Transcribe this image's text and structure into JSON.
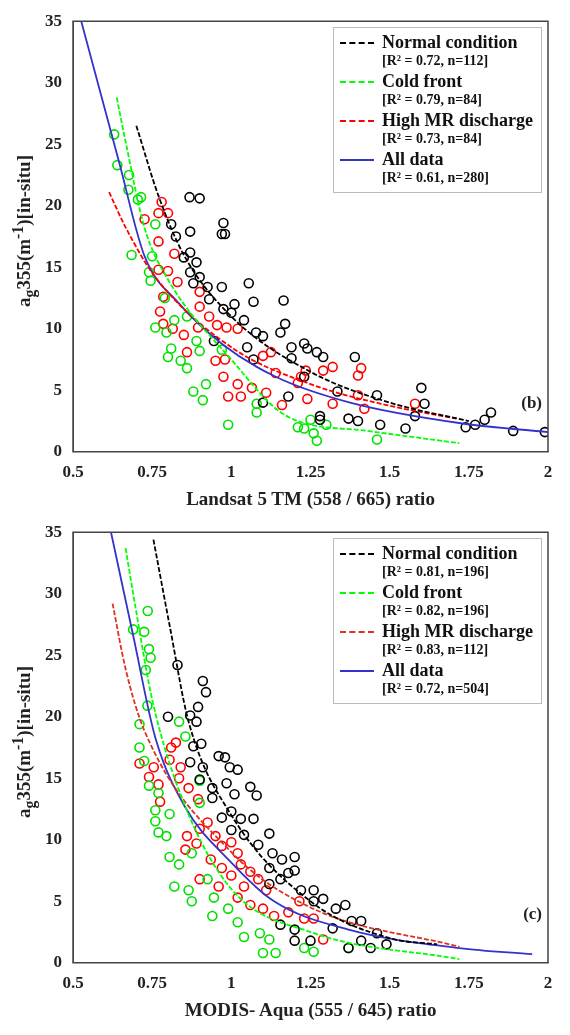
{
  "chart_data": [
    {
      "type": "scatter",
      "xlabel": "Landsat 5 TM (558 / 665) ratio",
      "ylabel": "a$_{g}$355(m$^{-1}$)[in-situ]",
      "xlim": [
        0.5,
        2
      ],
      "xticks": [
        0.5,
        0.75,
        1,
        1.25,
        1.5,
        1.75,
        2
      ],
      "ylim": [
        0,
        35
      ],
      "yticks": [
        0,
        5,
        10,
        15,
        20,
        25,
        30,
        35
      ],
      "grid": false,
      "legend": "top right",
      "annotations": [
        "(b)"
      ],
      "series": [
        {
          "marker": "circle",
          "color": "#000000",
          "x": [
            0.868,
            0.9,
            0.81,
            0.825,
            0.87,
            0.87,
            0.85,
            0.89,
            0.87,
            0.9,
            0.88,
            0.925,
            0.97,
            0.975,
            0.97,
            0.98,
            0.975,
            1.01,
            1.0,
            1.04,
            1.055,
            1.07,
            1.078,
            1.1,
            1.05,
            1.07,
            1.165,
            1.17,
            1.155,
            1.19,
            1.23,
            1.24,
            1.27,
            1.29,
            1.39,
            1.19,
            1.335,
            1.46,
            1.6,
            1.61,
            1.37,
            1.4,
            1.47,
            1.55,
            1.58,
            1.74,
            1.77,
            1.8,
            1.82,
            1.89,
            1.99,
            1.1,
            1.18,
            1.23,
            1.28,
            1.28,
            0.945,
            0.93
          ],
          "values": [
            20.7,
            20.6,
            18.5,
            17.5,
            17.9,
            16.2,
            15.8,
            15.4,
            14.6,
            14.2,
            13.7,
            13.4,
            13.4,
            18.6,
            17.7,
            17.7,
            11.6,
            12,
            11.3,
            10.7,
            13.7,
            12.2,
            9.7,
            9.4,
            8.5,
            7.5,
            12.3,
            10.4,
            9.7,
            8.5,
            8.8,
            8.4,
            8.1,
            7.7,
            7.7,
            7.6,
            4.9,
            4.6,
            5.2,
            3.9,
            2.7,
            2.5,
            2.2,
            1.9,
            2.9,
            2.0,
            2.2,
            2.6,
            3.2,
            1.7,
            1.6,
            4.0,
            4.5,
            6.1,
            2.9,
            2.6,
            9,
            12.4
          ]
        },
        {
          "marker": "circle",
          "color": "#00e000",
          "x": [
            0.63,
            0.64,
            0.677,
            0.675,
            0.705,
            0.715,
            0.685,
            0.76,
            0.75,
            0.74,
            0.745,
            0.76,
            0.795,
            0.81,
            0.8,
            0.84,
            0.86,
            0.79,
            0.82,
            0.86,
            0.89,
            0.9,
            0.88,
            0.91,
            0.92,
            0.97,
            0.99,
            1.08,
            1.08,
            1.21,
            1.23,
            1.25,
            1.27,
            1.3,
            1.46,
            1.26
          ],
          "values": [
            25.8,
            23.3,
            22.5,
            21.3,
            20.5,
            20.7,
            16,
            18.5,
            15.9,
            14.6,
            13.9,
            10.1,
            9.7,
            8.4,
            7.7,
            7.4,
            6.8,
            12.5,
            10.7,
            11,
            9,
            8.2,
            4.9,
            4.2,
            5.5,
            8.3,
            2.2,
            3.9,
            3.2,
            2.0,
            1.9,
            2.6,
            0.9,
            2.2,
            1.0,
            1.5
          ]
        },
        {
          "marker": "circle",
          "color": "#ff0000",
          "x": [
            0.78,
            0.77,
            0.8,
            0.726,
            0.77,
            0.82,
            0.77,
            0.8,
            0.83,
            0.785,
            0.775,
            0.785,
            0.815,
            0.85,
            0.86,
            0.895,
            0.9,
            0.9,
            0.93,
            0.955,
            0.985,
            1.02,
            0.95,
            0.98,
            0.975,
            1.02,
            0.99,
            1.03,
            1.065,
            1.1,
            1.125,
            1.14,
            1.11,
            1.16,
            1.21,
            1.22,
            1.235,
            1.24,
            1.29,
            1.32,
            1.32,
            1.4,
            1.41,
            1.4,
            1.42,
            1.58
          ],
          "values": [
            20.3,
            19.4,
            19.4,
            18.9,
            17.1,
            16.1,
            14.8,
            14.7,
            13.8,
            12.6,
            11.4,
            10.4,
            10,
            9.5,
            8.1,
            10.1,
            11.8,
            13,
            11,
            10.3,
            10.1,
            10,
            7.4,
            7.5,
            6.1,
            5.5,
            4.5,
            4.5,
            5.2,
            7.8,
            8.1,
            6.4,
            4.8,
            3.8,
            5.6,
            6.1,
            6.6,
            4.3,
            6.6,
            6.9,
            3.9,
            4.6,
            6.8,
            6.2,
            3.5,
            3.9
          ]
        },
        {
          "type": "line",
          "name": "Normal condition\n[R² = 0.72, n=112]",
          "color": "#000000",
          "line_style": "dashed",
          "x": [
            0.7,
            0.77,
            0.85,
            1.0,
            1.25,
            1.5,
            1.75
          ],
          "values": [
            26.5,
            20.8,
            16,
            11,
            6.5,
            4,
            2.5
          ]
        },
        {
          "type": "line",
          "name": "Cold front\n[R² = 0.79, n=84]",
          "color": "#00ff00",
          "line_style": "dashed",
          "x": [
            0.638,
            0.667,
            0.726,
            0.8,
            1.0,
            1.175,
            1.43,
            1.72
          ],
          "values": [
            28.8,
            25.1,
            18.2,
            14,
            7.5,
            2.9,
            1.7,
            0.7
          ]
        },
        {
          "type": "line",
          "name": "High MR discharge\n[R² = 0.73, n=84]",
          "color": "#ff0000",
          "line_style": "dashed",
          "x": [
            0.614,
            0.667,
            0.76,
            1.0,
            1.25,
            1.49,
            1.71
          ],
          "values": [
            21.1,
            18.2,
            14.2,
            8.5,
            5.5,
            3.8,
            2.7
          ]
        },
        {
          "type": "line",
          "name": "All data\n[R² = 0.61, n=280]",
          "color": "#3333cc",
          "line_style": "solid",
          "x": [
            0.526,
            0.644,
            0.726,
            0.833,
            0.974,
            1.14,
            1.375,
            1.73,
            2.0
          ],
          "values": [
            35,
            23.7,
            15.9,
            12.1,
            8.7,
            6.1,
            4.0,
            2.3,
            1.6
          ]
        }
      ]
    },
    {
      "type": "scatter",
      "xlabel": "MODIS- Aqua (555 / 645) ratio",
      "ylabel": "a$_{g}$355(m$^{-1}$)[in-situ]",
      "xlim": [
        0.5,
        2
      ],
      "xticks": [
        0.5,
        0.75,
        1,
        1.25,
        1.5,
        1.75,
        2
      ],
      "ylim": [
        0,
        35
      ],
      "yticks": [
        0,
        5,
        10,
        15,
        20,
        25,
        30,
        35
      ],
      "grid": false,
      "legend": "top right",
      "annotations": [
        "(c)"
      ],
      "series": [
        {
          "marker": "circle",
          "color": "#000000",
          "x": [
            0.83,
            0.87,
            0.91,
            0.92,
            0.895,
            0.89,
            0.905,
            0.88,
            0.8,
            0.91,
            0.9,
            0.96,
            0.98,
            0.995,
            1.02,
            0.94,
            0.985,
            1.01,
            1.06,
            1.08,
            0.94,
            0.97,
            1.0,
            1.03,
            1.07,
            1.0,
            1.04,
            1.12,
            1.085,
            1.13,
            1.16,
            1.2,
            1.12,
            1.18,
            1.2,
            1.155,
            1.22,
            1.26,
            1.26,
            1.29,
            1.33,
            1.36,
            1.38,
            1.41,
            1.155,
            1.2,
            1.2,
            1.25,
            1.32,
            1.37,
            1.41,
            1.44,
            1.46,
            1.49,
            0.87,
            1.12
          ],
          "values": [
            24.2,
            20.1,
            22.9,
            22,
            20.8,
            19.6,
            17.8,
            17.6,
            20,
            15.9,
            14.9,
            16.8,
            16.7,
            15.9,
            15.7,
            14.2,
            14.6,
            13.7,
            14.3,
            13.6,
            13.4,
            11.8,
            12.3,
            11.7,
            11.7,
            10.8,
            10.4,
            10.5,
            9.6,
            8.9,
            8.4,
            8.6,
            7.7,
            7.3,
            7.5,
            6.8,
            5.9,
            5.9,
            5,
            5.2,
            4.4,
            4.7,
            3.4,
            3.4,
            3.1,
            2.7,
            1.8,
            1.8,
            2.8,
            1.2,
            1.8,
            1.2,
            2.4,
            1.5,
            16.3,
            6.4
          ]
        },
        {
          "marker": "circle",
          "color": "#00e000",
          "x": [
            0.736,
            0.69,
            0.725,
            0.74,
            0.745,
            0.73,
            0.735,
            0.71,
            0.71,
            0.725,
            0.74,
            0.77,
            0.76,
            0.77,
            0.795,
            0.805,
            0.835,
            0.82,
            0.865,
            0.875,
            0.835,
            0.855,
            0.9,
            0.9,
            0.925,
            0.945,
            0.94,
            0.99,
            1.02,
            1.04,
            1.09,
            1.1,
            1.14,
            1.12,
            1.23,
            1.26,
            1.37,
            0.875,
            0.805,
            0.76
          ],
          "values": [
            28.6,
            27.1,
            26.9,
            25.5,
            24.8,
            23.8,
            20.9,
            19.4,
            17.5,
            16.4,
            14.4,
            13.8,
            12.4,
            10.6,
            10.3,
            8.6,
            8.0,
            6.2,
            5.9,
            5.0,
            19.6,
            18.4,
            14.8,
            13.0,
            6.8,
            5.3,
            3.8,
            4.4,
            3.3,
            2.1,
            2.4,
            0.8,
            0.8,
            1.9,
            1.2,
            0.9,
            1.2,
            8.9,
            12.1,
            11.5
          ]
        },
        {
          "marker": "circle",
          "color": "#ff0000",
          "x": [
            0.71,
            0.74,
            0.755,
            0.77,
            0.775,
            0.81,
            0.805,
            0.825,
            0.84,
            0.835,
            0.865,
            0.895,
            0.89,
            0.855,
            0.86,
            0.9,
            0.925,
            0.95,
            0.97,
            1.0,
            1.02,
            0.935,
            0.97,
            1.0,
            1.04,
            1.06,
            1.085,
            1.11,
            1.02,
            1.06,
            1.1,
            1.135,
            1.18,
            1.215,
            1.23,
            1.26,
            1.29,
            0.96,
            0.9,
            1.03
          ],
          "values": [
            16.2,
            15.1,
            15.9,
            14.5,
            13.1,
            17.5,
            16.5,
            17.9,
            15.9,
            15,
            14.2,
            13.3,
            9.7,
            9.2,
            10.3,
            10.9,
            11.4,
            10.3,
            9.5,
            9.8,
            8.9,
            8.4,
            7.7,
            7.1,
            6.2,
            7.4,
            6.8,
            5.9,
            5.3,
            4.7,
            4.4,
            3.8,
            4.1,
            5.0,
            3.6,
            3.6,
            1.9,
            6.2,
            6.8,
            8.0
          ]
        },
        {
          "type": "line",
          "name": "Normal condition\n[R² = 0.81, n=196]",
          "color": "#000000",
          "line_style": "dashed",
          "x": [
            0.754,
            0.806,
            0.865,
            1.0,
            1.25,
            1.5,
            1.65
          ],
          "values": [
            34.4,
            27.3,
            19.6,
            12,
            5,
            2,
            1.5
          ]
        },
        {
          "type": "line",
          "name": "Cold front\n[R² = 0.82, n=196]",
          "color": "#00ff00",
          "line_style": "dashed",
          "x": [
            0.666,
            0.7,
            0.75,
            0.85,
            1.0,
            1.25,
            1.72
          ],
          "values": [
            33.7,
            28.5,
            21.4,
            13,
            6,
            2.5,
            0.3
          ]
        },
        {
          "type": "line",
          "name": "High MR discharge\n[R² = 0.83, n=112]",
          "color": "#dd3322",
          "line_style": "dashed",
          "x": [
            0.625,
            0.666,
            0.725,
            1.0,
            1.25,
            1.72
          ],
          "values": [
            29.2,
            23.9,
            18.9,
            9,
            4.5,
            1.3
          ]
        },
        {
          "type": "line",
          "name": "All data\n[R² = 0.72, n=504]",
          "color": "#3333cc",
          "line_style": "solid",
          "x": [
            0.62,
            0.69,
            0.76,
            0.853,
            0.994,
            1.135,
            1.37,
            1.72,
            1.95
          ],
          "values": [
            35,
            26.6,
            18.3,
            12.7,
            8.3,
            5.0,
            2.7,
            1.2,
            0.7
          ]
        }
      ]
    }
  ]
}
